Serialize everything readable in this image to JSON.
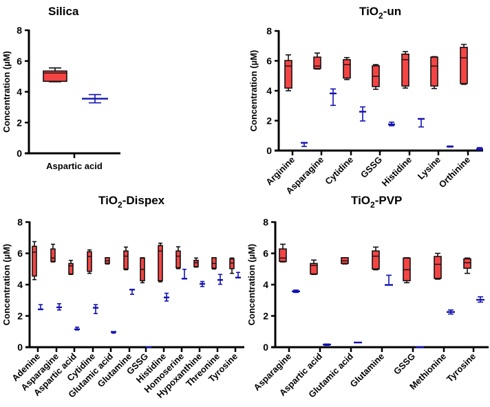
{
  "chart_data": [
    {
      "type": "box",
      "title": "Silica",
      "ylabel": "Concentration (µM)",
      "ylim": [
        0,
        8
      ],
      "yticks": [
        "0",
        "2",
        "4",
        "6",
        "8"
      ],
      "categories": [
        "Aspartic acid"
      ],
      "series": [
        {
          "name": "box",
          "color": "#f44545",
          "values": [
            {
              "min": 4.65,
              "q1": 4.68,
              "median": 5.22,
              "q3": 5.35,
              "max": 5.55
            }
          ]
        },
        {
          "name": "mean_error",
          "color": "#1111b0",
          "values": [
            {
              "mean": 3.55,
              "low": 3.28,
              "high": 3.82
            }
          ]
        }
      ]
    },
    {
      "type": "box",
      "title": "TiO",
      "title_sub": "2",
      "title_suffix": "-un",
      "ylabel": "Concentration (µM)",
      "ylim": [
        0,
        8
      ],
      "yticks": [
        "0",
        "2",
        "4",
        "6",
        "8"
      ],
      "categories": [
        "Arginine",
        "Asparagine",
        "Cytidine",
        "GSSG",
        "Histidine",
        "Lysine",
        "Orthinine"
      ],
      "series": [
        {
          "name": "box",
          "color": "#f44545",
          "values": [
            {
              "min": 4.0,
              "q1": 4.18,
              "median": 5.65,
              "q3": 6.02,
              "max": 6.4
            },
            {
              "min": 5.45,
              "q1": 5.48,
              "median": 5.65,
              "q3": 6.25,
              "max": 6.52
            },
            {
              "min": 4.75,
              "q1": 4.85,
              "median": 5.75,
              "q3": 6.08,
              "max": 6.22
            },
            {
              "min": 4.1,
              "q1": 4.28,
              "median": 4.97,
              "q3": 5.67,
              "max": 5.75
            },
            {
              "min": 4.18,
              "q1": 4.32,
              "median": 6.08,
              "q3": 6.45,
              "max": 6.62
            },
            {
              "min": 4.15,
              "q1": 4.32,
              "median": 5.65,
              "q3": 6.25,
              "max": 6.28
            },
            {
              "min": 4.43,
              "q1": 4.48,
              "median": 6.2,
              "q3": 6.9,
              "max": 7.1
            }
          ]
        },
        {
          "name": "mean_error",
          "color": "#1111b0",
          "values": [
            {
              "mean": 0.52,
              "low": 0.28,
              "high": 0.52
            },
            {
              "mean": 3.82,
              "low": 3.02,
              "high": 4.12
            },
            {
              "mean": 2.6,
              "low": 1.98,
              "high": 2.92
            },
            {
              "mean": 1.75,
              "low": 1.66,
              "high": 1.9
            },
            {
              "mean": 2.12,
              "low": 1.58,
              "high": 2.12
            },
            {
              "mean": 0.27,
              "low": 0.24,
              "high": 0.3
            },
            {
              "mean": 0.1,
              "low": 0.04,
              "high": 0.2
            }
          ]
        }
      ]
    },
    {
      "type": "box",
      "title": "TiO",
      "title_sub": "2",
      "title_suffix": "-Dispex",
      "ylabel": "Concentration (µM)",
      "ylim": [
        0,
        8
      ],
      "yticks": [
        "0",
        "2",
        "4",
        "6",
        "8"
      ],
      "categories": [
        "Adenine",
        "Asparagine",
        "Aspartic acid",
        "Cytidine",
        "Glutamic acid",
        "Glutamine",
        "GSSG",
        "Histidine",
        "Homoserine",
        "Hypoxanthine",
        "Threonine",
        "Tyrosine"
      ],
      "series": [
        {
          "name": "box",
          "color": "#f44545",
          "values": [
            {
              "min": 4.32,
              "q1": 4.55,
              "median": 6.08,
              "q3": 6.45,
              "max": 6.75
            },
            {
              "min": 5.45,
              "q1": 5.48,
              "median": 5.7,
              "q3": 6.28,
              "max": 6.58
            },
            {
              "min": 4.65,
              "q1": 4.68,
              "median": 5.2,
              "q3": 5.35,
              "max": 5.55
            },
            {
              "min": 4.72,
              "q1": 4.85,
              "median": 5.8,
              "q3": 6.1,
              "max": 6.22
            },
            {
              "min": 5.32,
              "q1": 5.35,
              "median": 5.52,
              "q3": 5.72,
              "max": 5.72
            },
            {
              "min": 4.95,
              "q1": 5.0,
              "median": 5.82,
              "q3": 6.15,
              "max": 6.4
            },
            {
              "min": 4.12,
              "q1": 4.25,
              "median": 4.98,
              "q3": 5.7,
              "max": 5.72
            },
            {
              "min": 4.18,
              "q1": 4.25,
              "median": 6.15,
              "q3": 6.5,
              "max": 6.65
            },
            {
              "min": 5.02,
              "q1": 5.08,
              "median": 5.82,
              "q3": 6.15,
              "max": 6.42
            },
            {
              "min": 5.12,
              "q1": 5.15,
              "median": 5.4,
              "q3": 5.55,
              "max": 5.7
            },
            {
              "min": 5.0,
              "q1": 5.05,
              "median": 5.35,
              "q3": 5.72,
              "max": 5.72
            },
            {
              "min": 4.72,
              "q1": 5.02,
              "median": 5.38,
              "q3": 5.65,
              "max": 5.7
            }
          ]
        },
        {
          "name": "mean_error",
          "color": "#1111b0",
          "values": [
            {
              "mean": 2.42,
              "low": 2.42,
              "high": 2.72
            },
            {
              "mean": 2.55,
              "low": 2.38,
              "high": 2.78
            },
            {
              "mean": 1.15,
              "low": 1.1,
              "high": 1.28
            },
            {
              "mean": 2.52,
              "low": 2.15,
              "high": 2.72
            },
            {
              "mean": 0.98,
              "low": 0.9,
              "high": 1.0
            },
            {
              "mean": 3.68,
              "low": 3.38,
              "high": 3.68
            },
            {
              "mean": 0.0,
              "low": 0.0,
              "high": 0.0
            },
            {
              "mean": 3.18,
              "low": 2.95,
              "high": 3.45
            },
            {
              "mean": 4.38,
              "low": 4.38,
              "high": 4.98
            },
            {
              "mean": 4.05,
              "low": 3.88,
              "high": 4.2
            },
            {
              "mean": 4.3,
              "low": 4.02,
              "high": 4.65
            },
            {
              "mean": 4.45,
              "low": 4.45,
              "high": 4.78
            }
          ]
        }
      ]
    },
    {
      "type": "box",
      "title": "TiO",
      "title_sub": "2",
      "title_suffix": "-PVP",
      "ylabel": "Concentration (µM)",
      "ylim": [
        0,
        8
      ],
      "yticks": [
        "0",
        "2",
        "4",
        "6",
        "8"
      ],
      "categories": [
        "Asparagine",
        "Aspartic acid",
        "Glutamic acid",
        "Glutamine",
        "GSSG",
        "Methionine",
        "Tyrosine"
      ],
      "series": [
        {
          "name": "box",
          "color": "#f44545",
          "values": [
            {
              "min": 5.45,
              "q1": 5.48,
              "median": 5.7,
              "q3": 6.28,
              "max": 6.58
            },
            {
              "min": 4.65,
              "q1": 4.68,
              "median": 5.22,
              "q3": 5.35,
              "max": 5.57
            },
            {
              "min": 5.32,
              "q1": 5.35,
              "median": 5.52,
              "q3": 5.72,
              "max": 5.72
            },
            {
              "min": 4.95,
              "q1": 5.0,
              "median": 5.82,
              "q3": 6.15,
              "max": 6.4
            },
            {
              "min": 4.12,
              "q1": 4.25,
              "median": 4.95,
              "q3": 5.7,
              "max": 5.72
            },
            {
              "min": 4.35,
              "q1": 4.4,
              "median": 5.3,
              "q3": 5.8,
              "max": 6.0
            },
            {
              "min": 4.72,
              "q1": 5.05,
              "median": 5.4,
              "q3": 5.65,
              "max": 5.7
            }
          ]
        },
        {
          "name": "mean_error",
          "color": "#1111b0",
          "values": [
            {
              "mean": 3.57,
              "low": 3.5,
              "high": 3.65
            },
            {
              "mean": 0.17,
              "low": 0.12,
              "high": 0.2
            },
            {
              "mean": 0.3,
              "low": 0.3,
              "high": 0.3
            },
            {
              "mean": 3.98,
              "low": 3.98,
              "high": 4.6
            },
            {
              "mean": 0.0,
              "low": 0.0,
              "high": 0.0
            },
            {
              "mean": 2.25,
              "low": 2.12,
              "high": 2.38
            },
            {
              "mean": 3.03,
              "low": 2.88,
              "high": 3.22
            }
          ]
        }
      ]
    }
  ]
}
